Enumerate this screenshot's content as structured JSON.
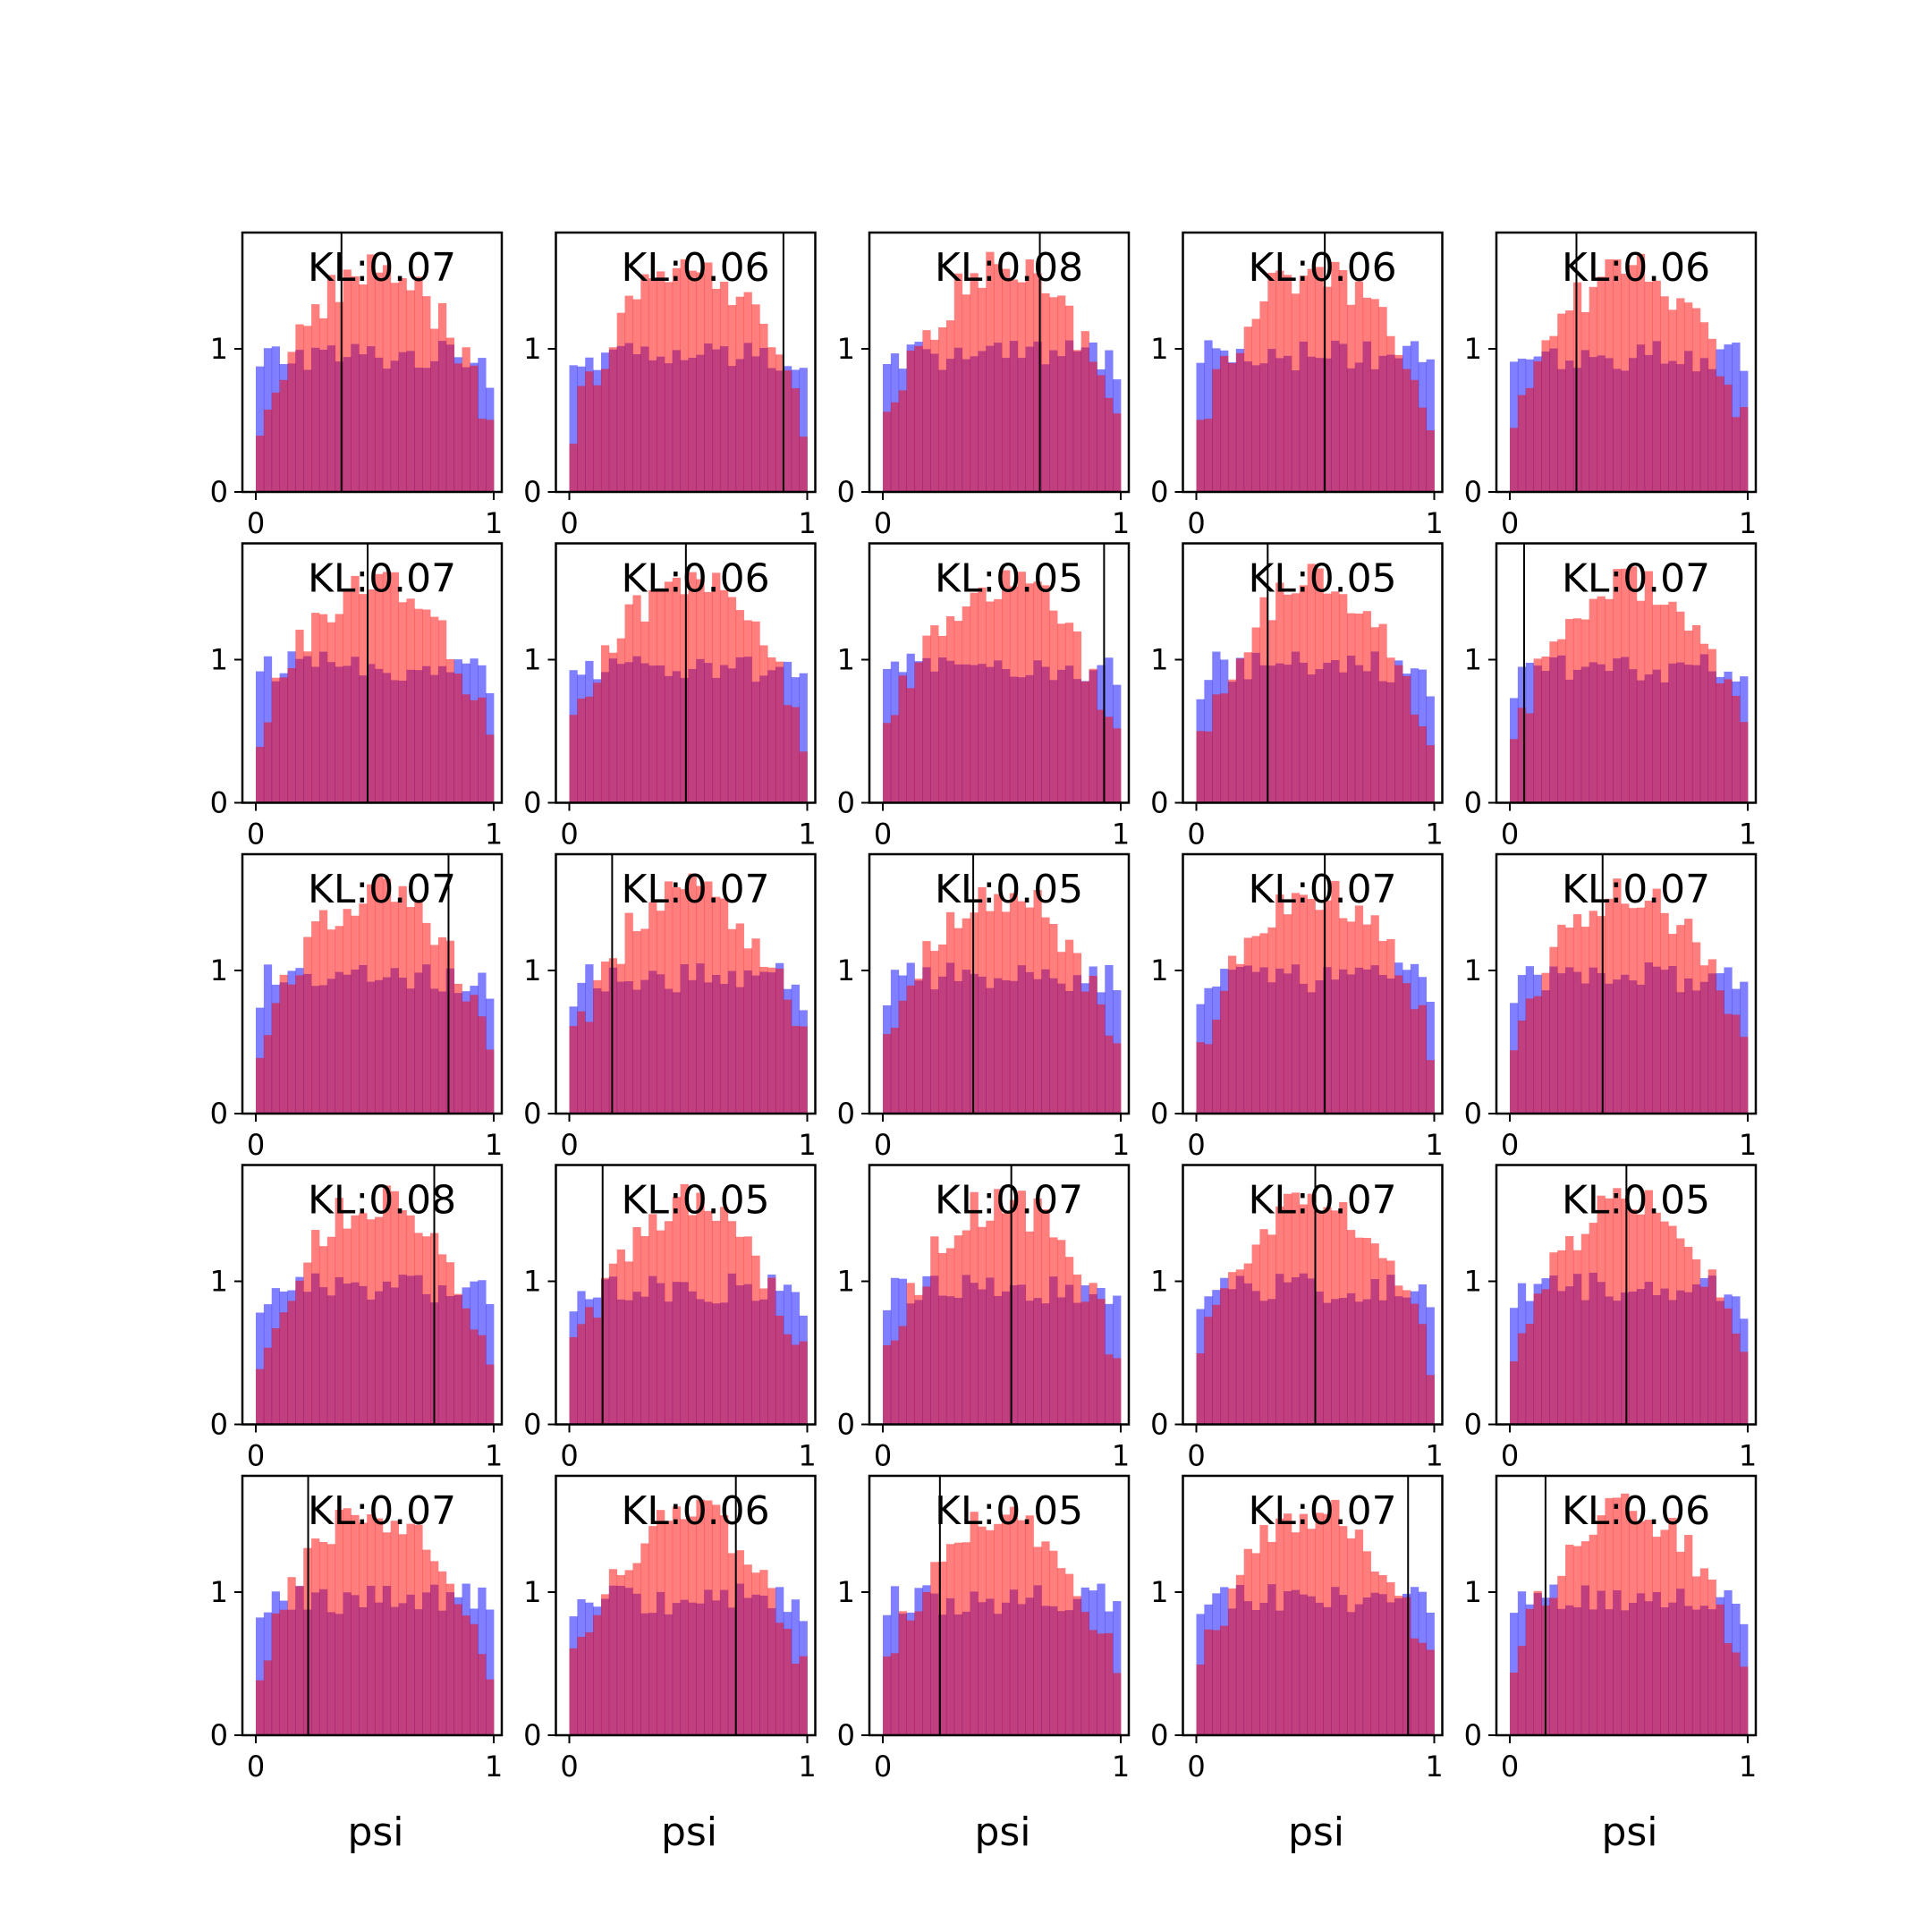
{
  "figure": {
    "rows": 5,
    "cols": 5
  },
  "colors": {
    "uniform": "#0000ff",
    "posterior": "#ff0000",
    "alpha": 0.5,
    "truth_line": "#000000"
  },
  "chart_data": {
    "type": "bar",
    "subtype": "histogram-grid",
    "xlabel": "psi",
    "xlim": [
      -0.05,
      1.05
    ],
    "ylim": [
      0,
      1.75
    ],
    "xticks": [
      "0",
      "1"
    ],
    "yticks": [
      "0",
      "1"
    ],
    "bins": 30,
    "panels": [
      {
        "kl": "KL:0.07",
        "truth": 0.36
      },
      {
        "kl": "KL:0.06",
        "truth": 0.9
      },
      {
        "kl": "KL:0.08",
        "truth": 0.66
      },
      {
        "kl": "KL:0.06",
        "truth": 0.54
      },
      {
        "kl": "KL:0.06",
        "truth": 0.28
      },
      {
        "kl": "KL:0.07",
        "truth": 0.47
      },
      {
        "kl": "KL:0.06",
        "truth": 0.49
      },
      {
        "kl": "KL:0.05",
        "truth": 0.93
      },
      {
        "kl": "KL:0.05",
        "truth": 0.3
      },
      {
        "kl": "KL:0.07",
        "truth": 0.06
      },
      {
        "kl": "KL:0.07",
        "truth": 0.81
      },
      {
        "kl": "KL:0.07",
        "truth": 0.18
      },
      {
        "kl": "KL:0.05",
        "truth": 0.38
      },
      {
        "kl": "KL:0.07",
        "truth": 0.54
      },
      {
        "kl": "KL:0.07",
        "truth": 0.39
      },
      {
        "kl": "KL:0.08",
        "truth": 0.75
      },
      {
        "kl": "KL:0.05",
        "truth": 0.14
      },
      {
        "kl": "KL:0.07",
        "truth": 0.54
      },
      {
        "kl": "KL:0.07",
        "truth": 0.5
      },
      {
        "kl": "KL:0.05",
        "truth": 0.49
      },
      {
        "kl": "KL:0.07",
        "truth": 0.22
      },
      {
        "kl": "KL:0.06",
        "truth": 0.7
      },
      {
        "kl": "KL:0.05",
        "truth": 0.24
      },
      {
        "kl": "KL:0.07",
        "truth": 0.89
      },
      {
        "kl": "KL:0.06",
        "truth": 0.15
      }
    ]
  }
}
